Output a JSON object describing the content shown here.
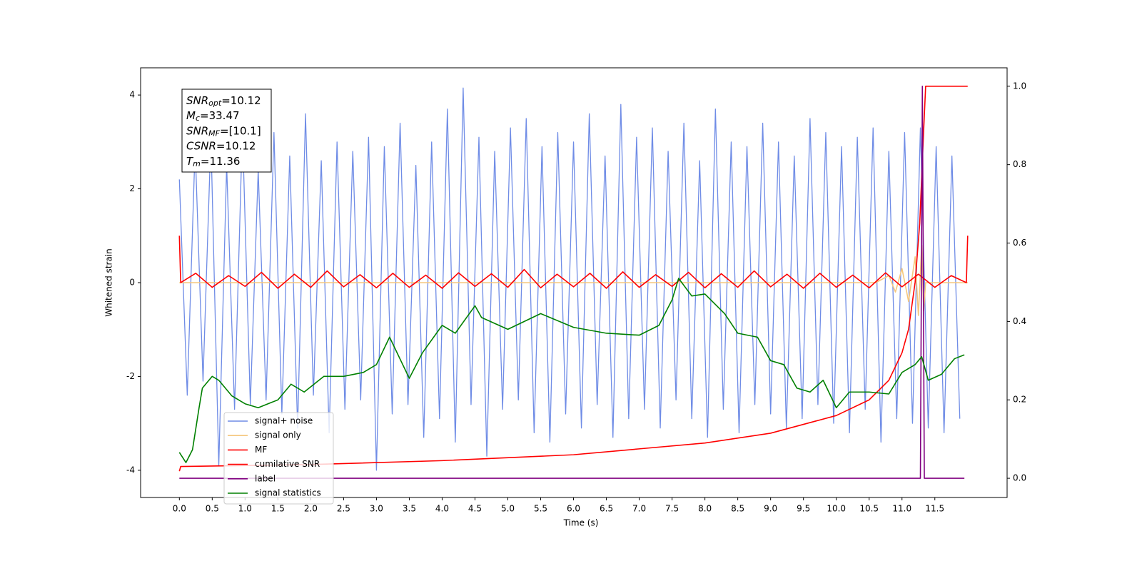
{
  "chart_data": {
    "type": "line",
    "xlabel": "Time (s)",
    "ylabel": "Whitened strain",
    "xlim": [
      -0.59,
      12.6
    ],
    "ylim": [
      -4.58,
      4.58
    ],
    "y2lim": [
      -0.049,
      1.047
    ],
    "xticks": [
      {
        "value": 0,
        "label": "0.0"
      },
      0.5,
      {
        "value": 1,
        "label": "1.0"
      },
      1.5,
      {
        "value": 2,
        "label": "2.0"
      },
      2.5,
      {
        "value": 3,
        "label": "3.0"
      },
      3.5,
      {
        "value": 4,
        "label": "4.0"
      },
      4.5,
      {
        "value": 5,
        "label": "5.0"
      },
      5.5,
      {
        "value": 6,
        "label": "6.0"
      },
      6.5,
      {
        "value": 7,
        "label": "7.0"
      },
      7.5,
      {
        "value": 8,
        "label": "8.0"
      },
      8.5,
      {
        "value": 9,
        "label": "9.0"
      },
      9.5,
      {
        "value": 10,
        "label": "10.0"
      },
      10.5,
      {
        "value": 11,
        "label": "11.0"
      },
      11.5
    ],
    "yticks": [
      -4,
      -2,
      0,
      2,
      4
    ],
    "y2ticks": [
      {
        "value": 0,
        "label": "0.0"
      },
      0.2,
      0.4,
      0.6,
      0.8,
      {
        "value": 1,
        "label": "1.0"
      }
    ],
    "annotation": [
      {
        "symbol": "SNR",
        "subscript": "opt",
        "text": "=10.12"
      },
      {
        "symbol": "M",
        "subscript": "c",
        "text": "=33.47"
      },
      {
        "symbol": "SNR",
        "subscript": "MF",
        "text": "=[10.1]"
      },
      {
        "symbol": "CSNR",
        "subscript": "",
        "text": "=10.12"
      },
      {
        "symbol": "T",
        "subscript": "m",
        "text": "=11.36"
      }
    ],
    "series": [
      {
        "name": "signal+ noise",
        "color": "#6f8ce6",
        "x": [
          0,
          0.12,
          0.24,
          0.36,
          0.48,
          0.6,
          0.72,
          0.84,
          0.96,
          1.08,
          1.2,
          1.32,
          1.44,
          1.56,
          1.68,
          1.8,
          1.92,
          2.04,
          2.16,
          2.28,
          2.4,
          2.52,
          2.64,
          2.76,
          2.88,
          3,
          3.12,
          3.24,
          3.36,
          3.48,
          3.6,
          3.72,
          3.84,
          3.96,
          4.08,
          4.2,
          4.32,
          4.44,
          4.56,
          4.68,
          4.8,
          4.92,
          5.04,
          5.16,
          5.28,
          5.4,
          5.52,
          5.64,
          5.76,
          5.88,
          6,
          6.12,
          6.24,
          6.36,
          6.48,
          6.6,
          6.72,
          6.84,
          6.96,
          7.08,
          7.2,
          7.32,
          7.44,
          7.56,
          7.68,
          7.8,
          7.92,
          8.04,
          8.16,
          8.28,
          8.4,
          8.52,
          8.64,
          8.76,
          8.88,
          9,
          9.12,
          9.24,
          9.36,
          9.48,
          9.6,
          9.72,
          9.84,
          9.96,
          10.08,
          10.2,
          10.32,
          10.44,
          10.56,
          10.68,
          10.8,
          10.92,
          11.04,
          11.16,
          11.28,
          11.4,
          11.52,
          11.64,
          11.76,
          11.88
        ],
        "values": [
          2.2,
          -2.4,
          2.9,
          -2.1,
          3.1,
          -3.9,
          2.5,
          -2.7,
          3.3,
          -2.6,
          2.4,
          -2.5,
          3.2,
          -2.8,
          2.7,
          -3.1,
          3.6,
          -2.4,
          2.6,
          -3.2,
          3.0,
          -2.7,
          2.8,
          -2.5,
          3.1,
          -4.0,
          2.9,
          -2.8,
          3.4,
          -2.6,
          2.5,
          -3.3,
          3.0,
          -2.9,
          3.7,
          -3.4,
          4.15,
          -2.6,
          3.1,
          -3.7,
          2.8,
          -2.7,
          3.3,
          -2.5,
          3.5,
          -3.2,
          2.9,
          -3.4,
          3.2,
          -2.8,
          3.0,
          -3.1,
          3.6,
          -2.6,
          2.7,
          -3.3,
          3.8,
          -2.9,
          3.1,
          -2.7,
          3.3,
          -3.1,
          2.8,
          -2.5,
          3.4,
          -2.9,
          2.6,
          -3.3,
          3.7,
          -2.7,
          3.0,
          -3.2,
          2.9,
          -2.6,
          3.4,
          -2.8,
          3.0,
          -3.1,
          2.7,
          -2.9,
          3.5,
          -2.6,
          3.2,
          -3.0,
          2.9,
          -3.2,
          3.1,
          -2.7,
          3.3,
          -3.4,
          2.8,
          -2.9,
          3.2,
          -3.0,
          3.3,
          -3.1,
          2.9,
          -3.2,
          2.7,
          -2.9
        ]
      },
      {
        "name": "signal only",
        "color": "#f5c77e",
        "x": [
          0,
          10.6,
          10.8,
          10.9,
          11.0,
          11.1,
          11.2,
          11.25,
          11.3,
          11.33,
          11.36,
          11.5,
          12
        ],
        "values": [
          0,
          0,
          0.15,
          -0.2,
          0.3,
          -0.4,
          0.55,
          -0.7,
          0.8,
          -0.6,
          0,
          0,
          0
        ]
      },
      {
        "name": "MF",
        "color": "#ff0000",
        "x": [
          0,
          0.02,
          0.25,
          0.5,
          0.75,
          1,
          1.25,
          1.5,
          1.75,
          2,
          2.25,
          2.5,
          2.75,
          3,
          3.25,
          3.5,
          3.75,
          4,
          4.25,
          4.5,
          4.75,
          5,
          5.25,
          5.5,
          5.75,
          6,
          6.25,
          6.5,
          6.75,
          7,
          7.25,
          7.5,
          7.75,
          8,
          8.25,
          8.5,
          8.75,
          9,
          9.25,
          9.5,
          9.75,
          10,
          10.25,
          10.5,
          10.75,
          11,
          11.25,
          11.5,
          11.75,
          11.98,
          12
        ],
        "values": [
          1.0,
          0.0,
          0.2,
          -0.1,
          0.15,
          -0.08,
          0.22,
          -0.12,
          0.18,
          -0.1,
          0.25,
          -0.09,
          0.17,
          -0.11,
          0.2,
          -0.1,
          0.16,
          -0.12,
          0.21,
          -0.08,
          0.19,
          -0.1,
          0.28,
          -0.11,
          0.18,
          -0.09,
          0.2,
          -0.12,
          0.23,
          -0.1,
          0.17,
          -0.08,
          0.22,
          -0.11,
          0.19,
          -0.1,
          0.25,
          -0.09,
          0.18,
          -0.12,
          0.2,
          -0.1,
          0.16,
          -0.11,
          0.21,
          -0.09,
          0.18,
          -0.1,
          0.15,
          0.0,
          1.0
        ]
      },
      {
        "name": "cumilative SNR",
        "color": "#ff0000",
        "axis": "y2",
        "x": [
          0,
          0.02,
          2,
          4,
          6,
          7,
          8,
          9,
          10,
          10.5,
          10.8,
          11.0,
          11.1,
          11.2,
          11.27,
          11.32,
          11.36,
          12
        ],
        "values": [
          0.018,
          0.03,
          0.035,
          0.045,
          0.06,
          0.075,
          0.09,
          0.115,
          0.16,
          0.2,
          0.25,
          0.32,
          0.38,
          0.5,
          0.65,
          0.85,
          1.0,
          1.0
        ]
      },
      {
        "name": "label",
        "color": "#800080",
        "axis": "y2",
        "x": [
          0,
          11.28,
          11.31,
          11.34,
          11.95
        ],
        "values": [
          0,
          0,
          1,
          0,
          0
        ]
      },
      {
        "name": "signal statistics",
        "color": "#008000",
        "axis": "y2",
        "x": [
          0,
          0.1,
          0.2,
          0.3,
          0.35,
          0.5,
          0.6,
          0.8,
          1.0,
          1.2,
          1.5,
          1.7,
          1.9,
          2.2,
          2.5,
          2.8,
          3.0,
          3.2,
          3.5,
          3.7,
          4.0,
          4.2,
          4.5,
          4.6,
          5.0,
          5.5,
          6.0,
          6.5,
          7.0,
          7.3,
          7.5,
          7.6,
          7.8,
          8.0,
          8.3,
          8.5,
          8.8,
          9.0,
          9.2,
          9.4,
          9.6,
          9.8,
          10.0,
          10.2,
          10.5,
          10.8,
          11.0,
          11.2,
          11.3,
          11.4,
          11.6,
          11.8,
          11.95
        ],
        "values": [
          0.066,
          0.04,
          0.073,
          0.18,
          0.23,
          0.26,
          0.25,
          0.21,
          0.19,
          0.18,
          0.2,
          0.24,
          0.22,
          0.26,
          0.26,
          0.27,
          0.29,
          0.36,
          0.255,
          0.32,
          0.39,
          0.37,
          0.44,
          0.41,
          0.38,
          0.42,
          0.385,
          0.37,
          0.365,
          0.39,
          0.455,
          0.51,
          0.465,
          0.47,
          0.42,
          0.37,
          0.36,
          0.3,
          0.29,
          0.23,
          0.22,
          0.25,
          0.18,
          0.22,
          0.22,
          0.215,
          0.27,
          0.29,
          0.31,
          0.25,
          0.265,
          0.305,
          0.315
        ]
      }
    ]
  }
}
